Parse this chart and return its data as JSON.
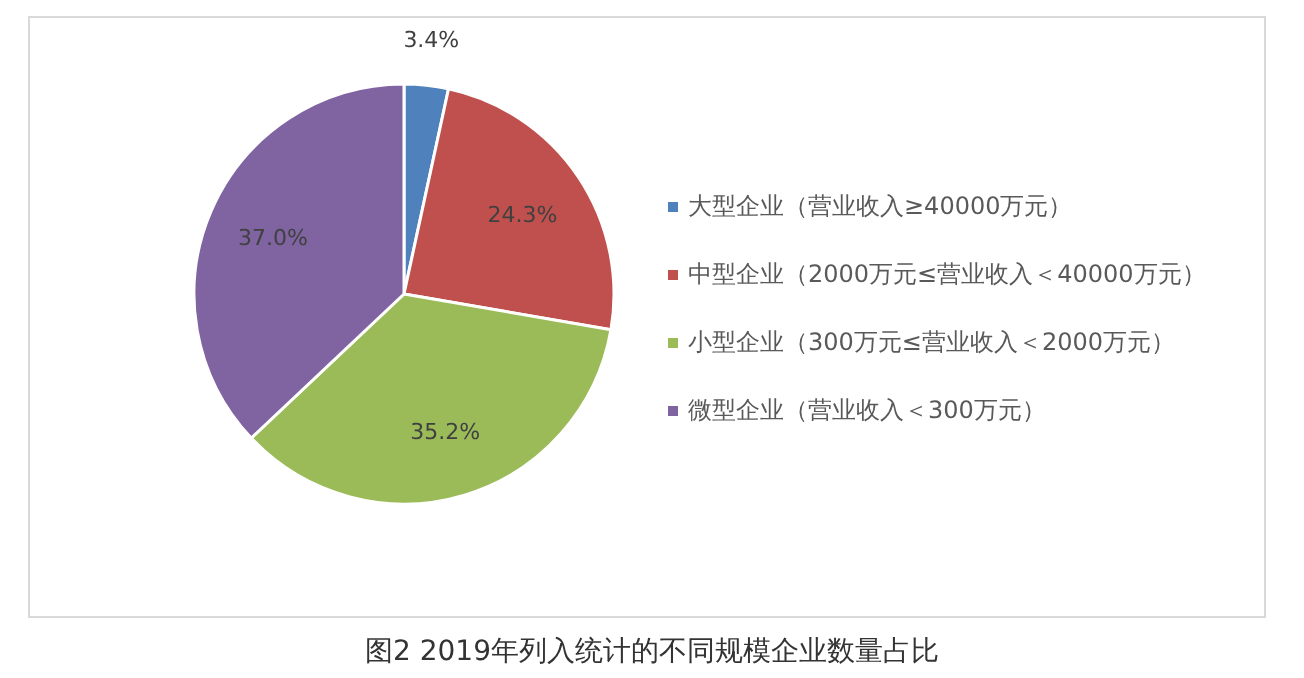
{
  "chart_data": {
    "type": "pie",
    "title": "图2  2019年列入统计的不同规模企业数量占比",
    "categories": [
      "大型企业（营业收入≥40000万元）",
      "中型企业（2000万元≤营业收入＜40000万元）",
      "小型企业（300万元≤营业收入＜2000万元）",
      "微型企业（营业收入＜300万元）"
    ],
    "values": [
      3.4,
      24.3,
      35.2,
      37.0
    ],
    "colors": [
      "#4f81bd",
      "#c0504d",
      "#9bbb59",
      "#8064a2"
    ],
    "value_labels": [
      "3.4%",
      "24.3%",
      "35.2%",
      "37.0%"
    ],
    "legend": "right"
  }
}
